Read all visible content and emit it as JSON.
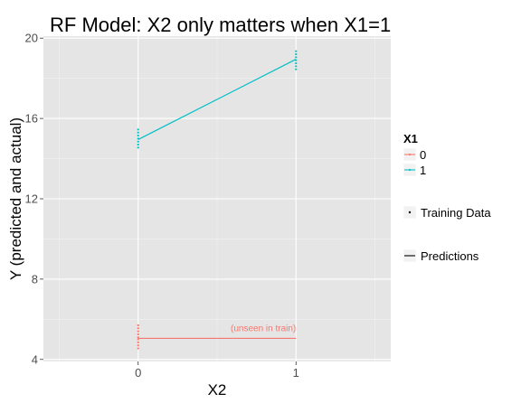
{
  "chart_data": {
    "type": "line",
    "title": "RF Model: X2 only matters when X1=1",
    "xlabel": "X2",
    "ylabel": "Y (predicted and actual)",
    "x_ticks": [
      "0",
      "1"
    ],
    "xlim": [
      -0.6,
      1.6
    ],
    "y_ticks": [
      4,
      8,
      12,
      16,
      20
    ],
    "ylim": [
      3.9,
      20.1
    ],
    "grid": true,
    "legend": {
      "title": "X1",
      "position": "right",
      "entries": [
        {
          "label": "0",
          "color": "#F8766D"
        },
        {
          "label": "1",
          "color": "#00BFC4"
        }
      ],
      "shape_entries": [
        {
          "label": "Training Data",
          "kind": "point"
        },
        {
          "label": "Predictions",
          "kind": "line"
        }
      ]
    },
    "series": [
      {
        "name": "0",
        "color": "#F8766D",
        "predictions": [
          {
            "x": 0,
            "y": 5.05
          },
          {
            "x": 1,
            "y": 5.05
          }
        ],
        "training": [
          {
            "x": 0,
            "y": 4.55
          },
          {
            "x": 0,
            "y": 4.7
          },
          {
            "x": 0,
            "y": 4.85
          },
          {
            "x": 0,
            "y": 5.0
          },
          {
            "x": 0,
            "y": 5.1
          },
          {
            "x": 0,
            "y": 5.25
          },
          {
            "x": 0,
            "y": 5.4
          },
          {
            "x": 0,
            "y": 5.55
          },
          {
            "x": 0,
            "y": 5.7
          }
        ]
      },
      {
        "name": "1",
        "color": "#00BFC4",
        "predictions": [
          {
            "x": 0,
            "y": 14.95
          },
          {
            "x": 1,
            "y": 18.95
          }
        ],
        "training": [
          {
            "x": 0,
            "y": 14.55
          },
          {
            "x": 0,
            "y": 14.7
          },
          {
            "x": 0,
            "y": 14.85
          },
          {
            "x": 0,
            "y": 15.0
          },
          {
            "x": 0,
            "y": 15.15
          },
          {
            "x": 0,
            "y": 15.3
          },
          {
            "x": 0,
            "y": 15.45
          },
          {
            "x": 1,
            "y": 18.45
          },
          {
            "x": 1,
            "y": 18.6
          },
          {
            "x": 1,
            "y": 18.75
          },
          {
            "x": 1,
            "y": 18.9
          },
          {
            "x": 1,
            "y": 19.05
          },
          {
            "x": 1,
            "y": 19.2
          },
          {
            "x": 1,
            "y": 19.35
          }
        ]
      }
    ],
    "annotations": [
      {
        "text": "(unseen in train)",
        "x": 1,
        "y": 5.05,
        "color": "#F8766D"
      }
    ]
  },
  "colors": {
    "panel_background": "#E5E5E5",
    "grid_major": "#FFFFFF",
    "grid_minor": "#F2F2F2"
  }
}
